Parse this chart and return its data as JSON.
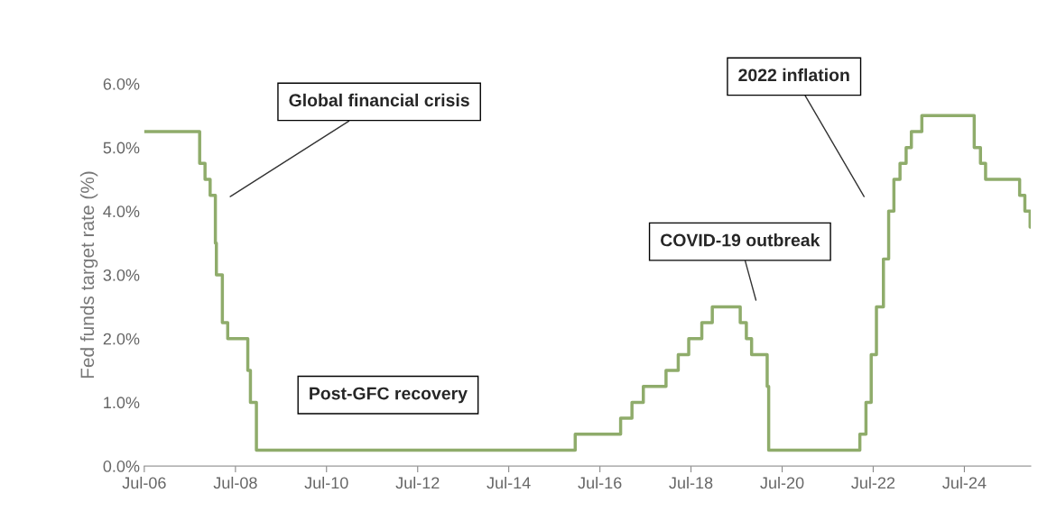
{
  "chart_data": {
    "type": "step",
    "ylabel": "Fed funds target rate (%)",
    "x": [
      "2006-07-01",
      "2007-09-18",
      "2007-10-31",
      "2007-12-11",
      "2008-01-22",
      "2008-01-30",
      "2008-03-18",
      "2008-04-30",
      "2008-10-08",
      "2008-10-29",
      "2008-12-16",
      "2015-12-16",
      "2016-12-14",
      "2017-03-15",
      "2017-06-14",
      "2017-12-13",
      "2018-03-21",
      "2018-06-13",
      "2018-09-26",
      "2018-12-19",
      "2019-07-31",
      "2019-09-18",
      "2019-10-30",
      "2020-03-03",
      "2020-03-15",
      "2022-03-16",
      "2022-05-04",
      "2022-06-15",
      "2022-07-27",
      "2022-09-21",
      "2022-11-02",
      "2022-12-14",
      "2023-02-01",
      "2023-03-22",
      "2023-05-03",
      "2023-07-26",
      "2024-09-18",
      "2024-11-07",
      "2024-12-18",
      "2025-09-17",
      "2025-10-29",
      "2025-12-10",
      "2025-12-15"
    ],
    "series": [
      {
        "color": "#8fac6b",
        "values": [
          5.25,
          4.75,
          4.5,
          4.25,
          3.5,
          3.0,
          2.25,
          2.0,
          1.5,
          1.0,
          0.25,
          0.5,
          0.75,
          1.0,
          1.25,
          1.5,
          1.75,
          2.0,
          2.25,
          2.5,
          2.25,
          2.0,
          1.75,
          1.25,
          0.25,
          0.5,
          1.0,
          1.75,
          2.5,
          3.25,
          4.0,
          4.5,
          4.75,
          5.0,
          5.25,
          5.5,
          5.0,
          4.75,
          4.5,
          4.25,
          4.0,
          3.75,
          3.75
        ]
      }
    ],
    "xlim": [
      "2006-07-01",
      "2025-12-15"
    ],
    "xticks": [
      {
        "value": "2006-07-01",
        "label": "Jul-06"
      },
      {
        "value": "2008-07-01",
        "label": "Jul-08"
      },
      {
        "value": "2010-07-01",
        "label": "Jul-10"
      },
      {
        "value": "2012-07-01",
        "label": "Jul-12"
      },
      {
        "value": "2014-07-01",
        "label": "Jul-14"
      },
      {
        "value": "2016-07-01",
        "label": "Jul-16"
      },
      {
        "value": "2018-07-01",
        "label": "Jul-18"
      },
      {
        "value": "2020-07-01",
        "label": "Jul-20"
      },
      {
        "value": "2022-07-01",
        "label": "Jul-22"
      },
      {
        "value": "2024-07-01",
        "label": "Jul-24"
      }
    ],
    "ylim": [
      0,
      6
    ],
    "yticks": [
      {
        "value": 0,
        "label": "0.0%"
      },
      {
        "value": 1,
        "label": "1.0%"
      },
      {
        "value": 2,
        "label": "2.0%"
      },
      {
        "value": 3,
        "label": "3.0%"
      },
      {
        "value": 4,
        "label": "4.0%"
      },
      {
        "value": 5,
        "label": "5.0%"
      },
      {
        "value": 6,
        "label": "6.0%"
      }
    ],
    "grid": false,
    "legend": false,
    "annotations": [
      "Global financial crisis",
      "Post-GFC recovery",
      "COVID-19 outbreak",
      "2022 inflation"
    ]
  }
}
